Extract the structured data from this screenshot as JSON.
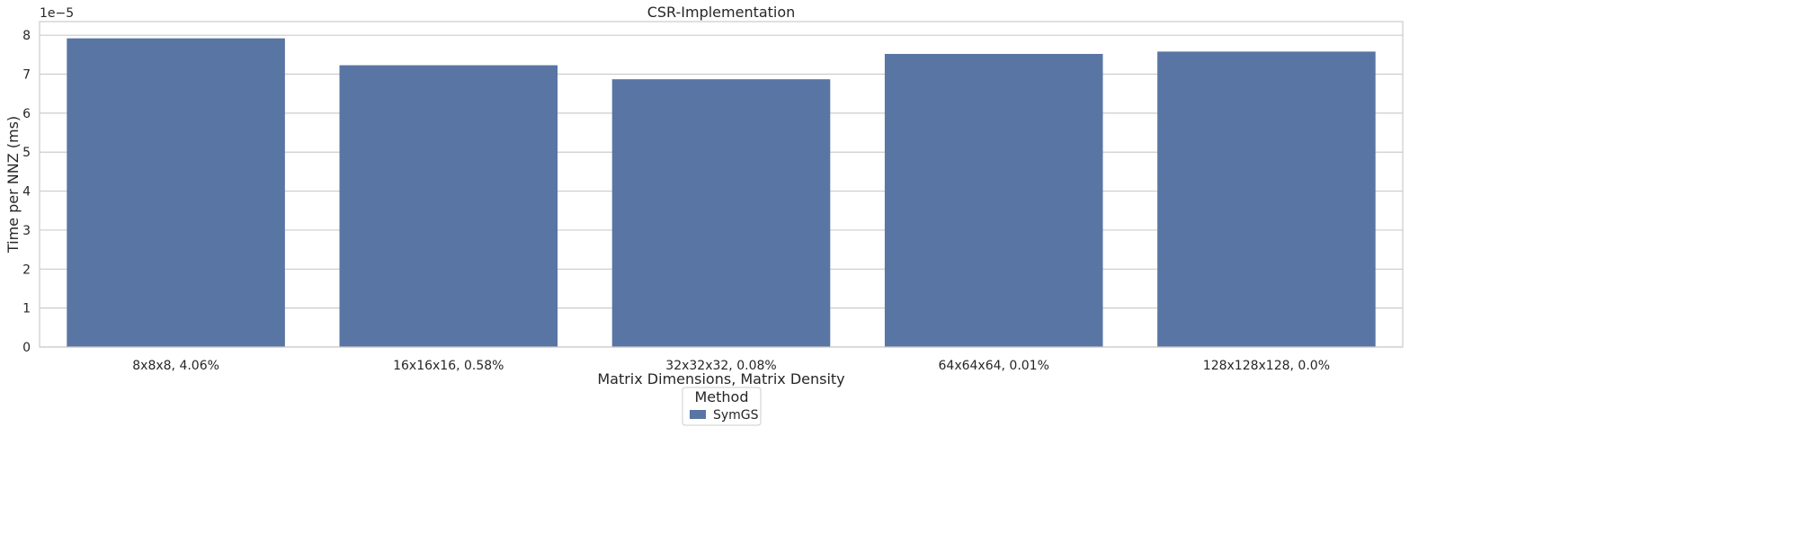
{
  "chart_data": {
    "type": "bar",
    "title": "CSR-Implementation",
    "xlabel": "Matrix Dimensions, Matrix Density",
    "ylabel": "Time per NNZ (ms)",
    "y_offset_label": "1e−5",
    "ylim": [
      0,
      8.35
    ],
    "yticks": [
      0,
      1,
      2,
      3,
      4,
      5,
      6,
      7,
      8
    ],
    "categories": [
      "8x8x8, 4.06%",
      "16x16x16, 0.58%",
      "32x32x32, 0.08%",
      "64x64x64, 0.01%",
      "128x128x128, 0.0%"
    ],
    "series": [
      {
        "name": "SymGS",
        "values": [
          7.92,
          7.23,
          6.87,
          7.52,
          7.58
        ],
        "color": "#5975a4"
      }
    ],
    "grid": "horizontal",
    "legend": {
      "title": "Method",
      "placement": "bottom-center"
    }
  }
}
